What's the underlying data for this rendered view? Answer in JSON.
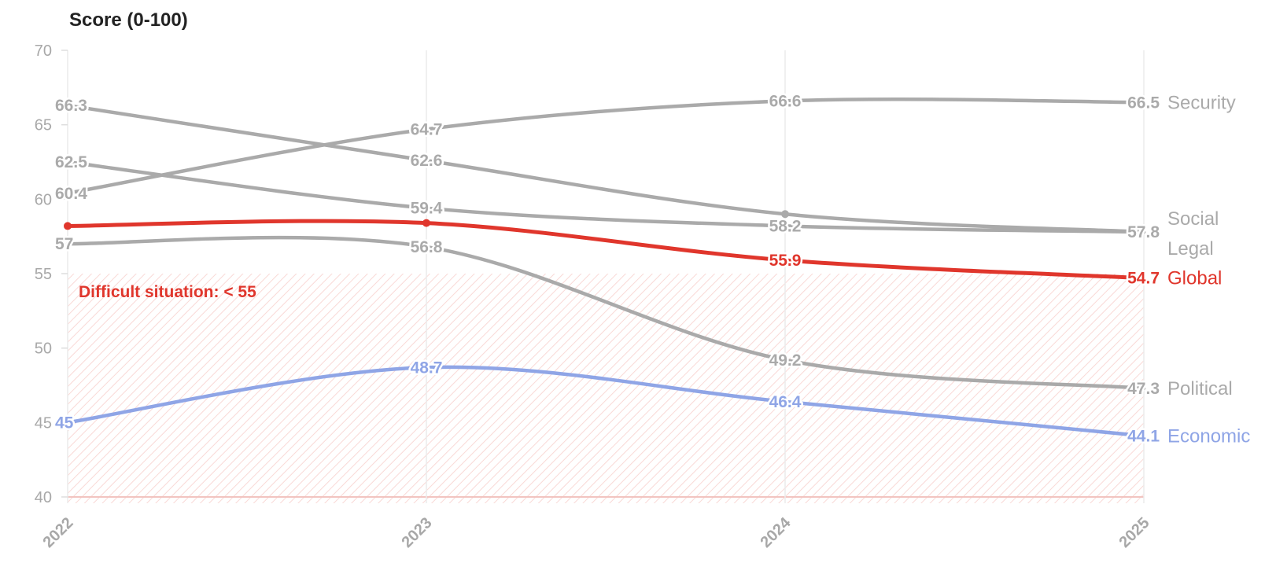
{
  "chart_data": {
    "type": "line",
    "title": "Score (0-100)",
    "x": [
      "2022",
      "2023",
      "2024",
      "2025"
    ],
    "ylim": [
      40,
      70
    ],
    "yticks": [
      40,
      45,
      50,
      55,
      60,
      65,
      70
    ],
    "grid": true,
    "threshold": {
      "label": "Difficult situation: < 55",
      "from": 40,
      "to": 55,
      "color": "#e0362c"
    },
    "series": [
      {
        "name": "Security",
        "values": [
          60.4,
          64.7,
          66.6,
          66.5
        ],
        "color": "#aaaaaa"
      },
      {
        "name": "Social",
        "values": [
          66.3,
          62.6,
          59.0,
          57.8
        ],
        "color": "#aaaaaa"
      },
      {
        "name": "Legal",
        "values": [
          62.5,
          59.4,
          58.2,
          57.8
        ],
        "color": "#aaaaaa"
      },
      {
        "name": "Global",
        "values": [
          58.2,
          58.4,
          55.9,
          54.7
        ],
        "color": "#e0362c"
      },
      {
        "name": "Political",
        "values": [
          57,
          56.8,
          49.2,
          47.3
        ],
        "color": "#aaaaaa"
      },
      {
        "name": "Economic",
        "values": [
          45,
          48.7,
          46.4,
          44.1
        ],
        "color": "#8fa5e6"
      }
    ],
    "point_labels": [
      {
        "series": "Security",
        "labels": [
          "60.4",
          "64.7",
          "66.6",
          "66.5"
        ]
      },
      {
        "series": "Social",
        "labels": [
          "66.3",
          "62.6",
          "",
          ""
        ]
      },
      {
        "series": "Legal",
        "labels": [
          "62.5",
          "59.4",
          "58.2",
          "57.8"
        ]
      },
      {
        "series": "Global",
        "labels": [
          "",
          "",
          "55.9",
          "54.7"
        ]
      },
      {
        "series": "Political",
        "labels": [
          "57",
          "56.8",
          "49.2",
          "47.3"
        ]
      },
      {
        "series": "Economic",
        "labels": [
          "45",
          "48.7",
          "46.4",
          "44.1"
        ]
      }
    ],
    "markers": [
      {
        "series": "Global",
        "index": 0
      },
      {
        "series": "Global",
        "index": 1
      },
      {
        "series": "Social",
        "index": 2
      }
    ]
  }
}
